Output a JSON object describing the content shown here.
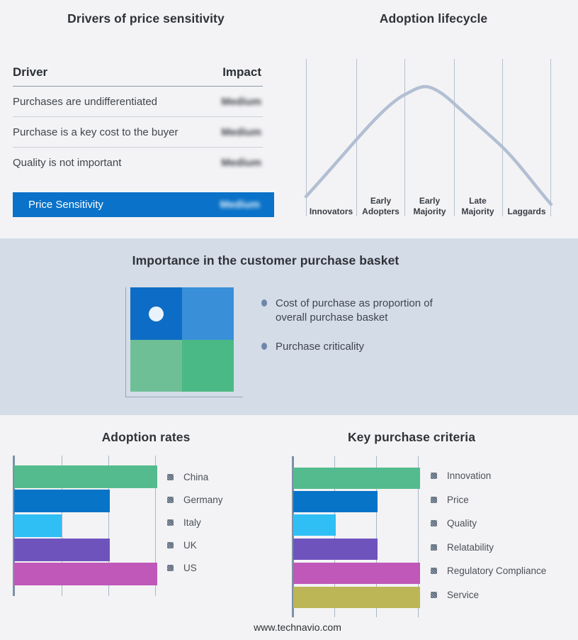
{
  "colors": {
    "page_bg": "#F3F3F5",
    "band_bg": "#D4DCE8",
    "highlight_blue": "#0A72C8",
    "curve": "#B2BFD3",
    "quadrant": {
      "top_left": "#0D6DC6",
      "top_right": "#3990D9",
      "bottom_left": "#6FBF96",
      "bottom_right": "#4BB985"
    },
    "bars": {
      "green": "#53BB8D",
      "blue": "#0774C8",
      "cyan": "#2FBFF5",
      "purple": "#6F53BD",
      "magenta": "#BF58B8",
      "olive": "#BCB656"
    }
  },
  "drivers_panel": {
    "title": "Drivers of price sensitivity",
    "columns": {
      "driver": "Driver",
      "impact": "Impact"
    },
    "rows": [
      {
        "driver": "Purchases are undifferentiated",
        "impact": "Medium"
      },
      {
        "driver": "Purchase is a key cost to the buyer",
        "impact": "Medium"
      },
      {
        "driver": "Quality is not important",
        "impact": "Medium"
      }
    ],
    "highlight": {
      "driver": "Price Sensitivity",
      "impact": "Medium"
    }
  },
  "lifecycle_panel": {
    "title": "Adoption lifecycle",
    "stages": [
      "Innovators",
      "Early Adopters",
      "Early Majority",
      "Late Majority",
      "Laggards"
    ]
  },
  "basket_panel": {
    "title": "Importance in the customer purchase basket",
    "bullets": [
      "Cost of purchase as proportion of overall purchase basket",
      "Purchase criticality"
    ]
  },
  "adoption_panel": {
    "title": "Adoption rates"
  },
  "criteria_panel": {
    "title": "Key purchase criteria"
  },
  "footer": {
    "url": "www.technavio.com"
  },
  "chart_data": [
    {
      "type": "table",
      "title": "Drivers of price sensitivity",
      "columns": [
        "Driver",
        "Impact"
      ],
      "rows": [
        [
          "Purchases are undifferentiated",
          "Medium"
        ],
        [
          "Purchase is a key cost to the buyer",
          "Medium"
        ],
        [
          "Quality is not important",
          "Medium"
        ],
        [
          "Price Sensitivity",
          "Medium"
        ]
      ]
    },
    {
      "type": "line",
      "title": "Adoption lifecycle",
      "categories": [
        "Innovators",
        "Early Adopters",
        "Early Majority",
        "Late Majority",
        "Laggards"
      ],
      "peak_stage": "Early Majority",
      "series": [
        {
          "name": "adoption-bell-curve",
          "x_norm": [
            0,
            0.205,
            0.405,
            0.486,
            0.604,
            0.8,
            1
          ],
          "y_norm": [
            0.13,
            0.49,
            0.77,
            0.82,
            0.72,
            0.44,
            0.08
          ]
        }
      ],
      "grid": "vertical-stage-dividers"
    },
    {
      "type": "heatmap",
      "title": "Importance in the customer purchase basket",
      "grid_colors": [
        [
          "#0D6DC6",
          "#3990D9"
        ],
        [
          "#6FBF96",
          "#4BB985"
        ]
      ],
      "marker": {
        "row": 0,
        "col": 0
      },
      "annotations": [
        "Cost of purchase as proportion of overall purchase basket",
        "Purchase criticality"
      ]
    },
    {
      "type": "bar",
      "title": "Adoption rates",
      "orientation": "horizontal",
      "categories": [
        "China",
        "Germany",
        "Italy",
        "UK",
        "US"
      ],
      "values": [
        3,
        2,
        1,
        2,
        3
      ],
      "xlim": [
        0,
        3
      ],
      "colors": [
        "#53BB8D",
        "#0774C8",
        "#2FBFF5",
        "#6F53BD",
        "#BF58B8"
      ],
      "legend_position": "right",
      "gridlines": true
    },
    {
      "type": "bar",
      "title": "Key purchase criteria",
      "orientation": "horizontal",
      "categories": [
        "Innovation",
        "Price",
        "Quality",
        "Relatability",
        "Regulatory Compliance",
        "Service"
      ],
      "values": [
        3,
        2,
        1,
        2,
        3,
        3
      ],
      "xlim": [
        0,
        3
      ],
      "colors": [
        "#53BB8D",
        "#0774C8",
        "#2FBFF5",
        "#6F53BD",
        "#BF58B8",
        "#BCB656"
      ],
      "legend_position": "right",
      "gridlines": true
    }
  ]
}
